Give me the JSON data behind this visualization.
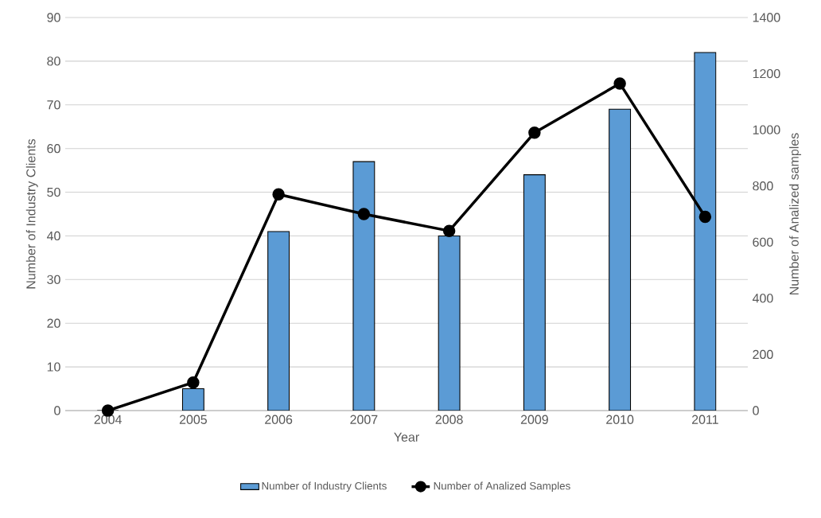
{
  "chart_data": {
    "type": "bar",
    "xlabel": "Year",
    "ylabel": "Number of Industry Clients",
    "y2label": "Number of Analized samples",
    "categories": [
      "2004",
      "2005",
      "2006",
      "2007",
      "2008",
      "2009",
      "2010",
      "2011"
    ],
    "series": [
      {
        "name": "Number of Industry Clients",
        "color": "#5b9bd5",
        "values": [
          0,
          5,
          41,
          57,
          40,
          54,
          69,
          82
        ]
      },
      {
        "name": "Number of Analized Samples",
        "type": "line",
        "axis": "y2",
        "color": "#000000",
        "marker": "circle",
        "values": [
          0,
          100,
          770,
          700,
          640,
          990,
          1165,
          690
        ]
      }
    ],
    "ylim": [
      0,
      90
    ],
    "yticks": [
      0,
      10,
      20,
      30,
      40,
      50,
      60,
      70,
      80,
      90
    ],
    "y2lim": [
      0,
      1400
    ],
    "y2ticks": [
      0,
      200,
      400,
      600,
      800,
      1000,
      1200,
      1400
    ],
    "grid": "y",
    "legend": "bottom"
  }
}
